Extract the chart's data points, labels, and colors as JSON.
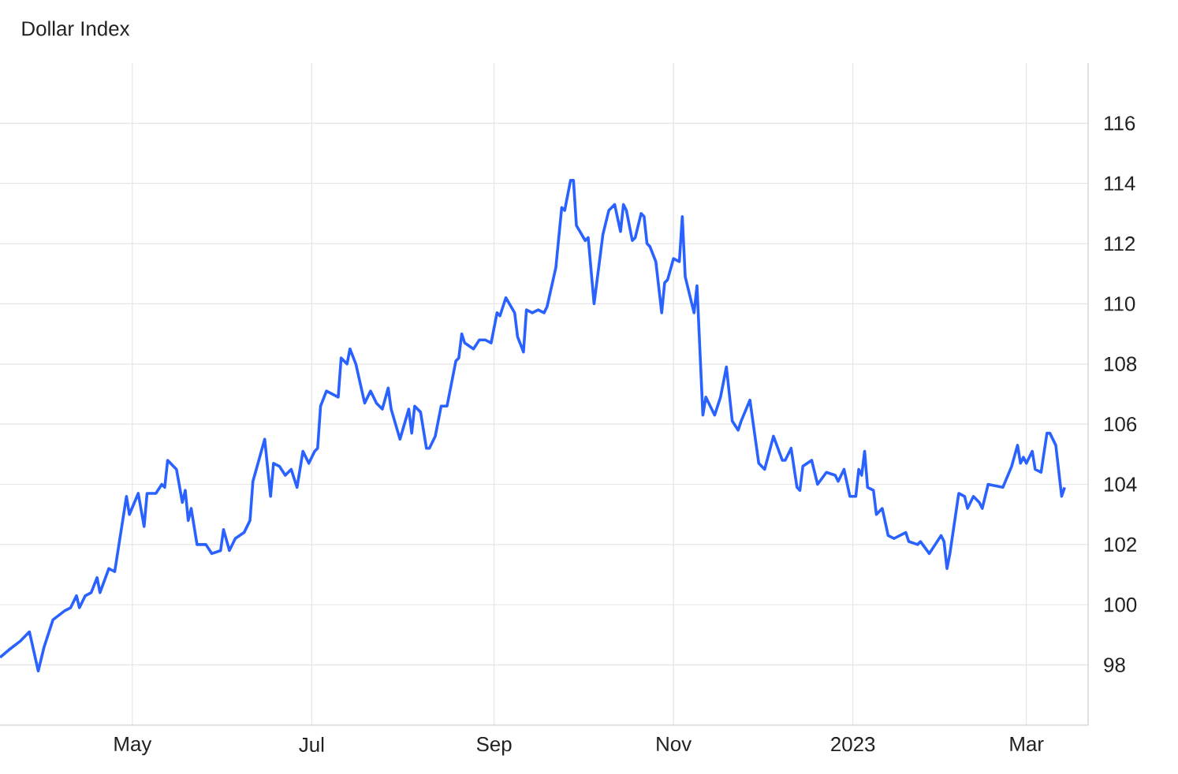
{
  "chart_data": {
    "type": "line",
    "title": "Dollar Index",
    "xlim": [
      "2022-03-17",
      "2023-03-22"
    ],
    "ylim": [
      96,
      118
    ],
    "xticks": [
      {
        "value": "2022-05-01",
        "label": "May"
      },
      {
        "value": "2022-07-01",
        "label": "Jul"
      },
      {
        "value": "2022-09-01",
        "label": "Sep"
      },
      {
        "value": "2022-11-01",
        "label": "Nov"
      },
      {
        "value": "2023-01-01",
        "label": "2023"
      },
      {
        "value": "2023-03-01",
        "label": "Mar"
      }
    ],
    "yticks": [
      98,
      100,
      102,
      104,
      106,
      108,
      110,
      112,
      114,
      116
    ],
    "grid": true,
    "series": [
      {
        "color": "#2962ff",
        "x": [
          "2022-03-17",
          "2022-03-20",
          "2022-03-24",
          "2022-03-27",
          "2022-03-30",
          "2022-04-01",
          "2022-04-04",
          "2022-04-08",
          "2022-04-10",
          "2022-04-12",
          "2022-04-13",
          "2022-04-15",
          "2022-04-17",
          "2022-04-19",
          "2022-04-20",
          "2022-04-23",
          "2022-04-25",
          "2022-04-29",
          "2022-04-30",
          "2022-05-03",
          "2022-05-05",
          "2022-05-06",
          "2022-05-09",
          "2022-05-11",
          "2022-05-12",
          "2022-05-13",
          "2022-05-16",
          "2022-05-18",
          "2022-05-19",
          "2022-05-20",
          "2022-05-21",
          "2022-05-23",
          "2022-05-26",
          "2022-05-28",
          "2022-05-31",
          "2022-06-01",
          "2022-06-03",
          "2022-06-05",
          "2022-06-08",
          "2022-06-10",
          "2022-06-11",
          "2022-06-15",
          "2022-06-17",
          "2022-06-18",
          "2022-06-20",
          "2022-06-22",
          "2022-06-24",
          "2022-06-26",
          "2022-06-28",
          "2022-06-30",
          "2022-07-02",
          "2022-07-03",
          "2022-07-04",
          "2022-07-06",
          "2022-07-10",
          "2022-07-11",
          "2022-07-13",
          "2022-07-14",
          "2022-07-16",
          "2022-07-19",
          "2022-07-21",
          "2022-07-23",
          "2022-07-25",
          "2022-07-27",
          "2022-07-28",
          "2022-07-31",
          "2022-08-03",
          "2022-08-04",
          "2022-08-05",
          "2022-08-07",
          "2022-08-09",
          "2022-08-10",
          "2022-08-12",
          "2022-08-14",
          "2022-08-16",
          "2022-08-19",
          "2022-08-20",
          "2022-08-21",
          "2022-08-22",
          "2022-08-25",
          "2022-08-27",
          "2022-08-29",
          "2022-08-31",
          "2022-09-02",
          "2022-09-03",
          "2022-09-05",
          "2022-09-08",
          "2022-09-09",
          "2022-09-11",
          "2022-09-12",
          "2022-09-14",
          "2022-09-16",
          "2022-09-18",
          "2022-09-19",
          "2022-09-22",
          "2022-09-24",
          "2022-09-25",
          "2022-09-27",
          "2022-09-28",
          "2022-09-29",
          "2022-10-02",
          "2022-10-03",
          "2022-10-05",
          "2022-10-08",
          "2022-10-10",
          "2022-10-12",
          "2022-10-14",
          "2022-10-15",
          "2022-10-16",
          "2022-10-18",
          "2022-10-19",
          "2022-10-21",
          "2022-10-22",
          "2022-10-23",
          "2022-10-24",
          "2022-10-26",
          "2022-10-28",
          "2022-10-29",
          "2022-10-30",
          "2022-11-01",
          "2022-11-03",
          "2022-11-04",
          "2022-11-05",
          "2022-11-08",
          "2022-11-09",
          "2022-11-11",
          "2022-11-12",
          "2022-11-15",
          "2022-11-17",
          "2022-11-19",
          "2022-11-21",
          "2022-11-23",
          "2022-11-24",
          "2022-11-27",
          "2022-11-30",
          "2022-12-02",
          "2022-12-05",
          "2022-12-08",
          "2022-12-09",
          "2022-12-11",
          "2022-12-13",
          "2022-12-14",
          "2022-12-15",
          "2022-12-18",
          "2022-12-20",
          "2022-12-23",
          "2022-12-26",
          "2022-12-27",
          "2022-12-29",
          "2022-12-31",
          "2023-01-02",
          "2023-01-03",
          "2023-01-04",
          "2023-01-05",
          "2023-01-06",
          "2023-01-08",
          "2023-01-09",
          "2023-01-11",
          "2023-01-13",
          "2023-01-15",
          "2023-01-17",
          "2023-01-19",
          "2023-01-20",
          "2023-01-23",
          "2023-01-24",
          "2023-01-27",
          "2023-01-29",
          "2023-01-31",
          "2023-02-01",
          "2023-02-02",
          "2023-02-03",
          "2023-02-06",
          "2023-02-08",
          "2023-02-09",
          "2023-02-11",
          "2023-02-13",
          "2023-02-14",
          "2023-02-16",
          "2023-02-21",
          "2023-02-24",
          "2023-02-26",
          "2023-02-27",
          "2023-02-28",
          "2023-03-01",
          "2023-03-03",
          "2023-03-04",
          "2023-03-06",
          "2023-03-08",
          "2023-03-09",
          "2023-03-11",
          "2023-03-13",
          "2023-03-14"
        ],
        "values": [
          98.25,
          98.5,
          98.8,
          99.1,
          97.8,
          98.6,
          99.5,
          99.8,
          99.9,
          100.3,
          99.9,
          100.3,
          100.4,
          100.9,
          100.4,
          101.2,
          101.1,
          103.6,
          103.0,
          103.7,
          102.6,
          103.7,
          103.7,
          104.0,
          103.9,
          104.8,
          104.5,
          103.4,
          103.8,
          102.8,
          103.2,
          102.0,
          102.0,
          101.7,
          101.8,
          102.5,
          101.8,
          102.2,
          102.4,
          102.8,
          104.1,
          105.5,
          103.6,
          104.7,
          104.6,
          104.3,
          104.5,
          103.9,
          105.1,
          104.7,
          105.1,
          105.2,
          106.6,
          107.1,
          106.9,
          108.2,
          108.0,
          108.5,
          108.0,
          106.7,
          107.1,
          106.7,
          106.5,
          107.2,
          106.5,
          105.5,
          106.5,
          105.7,
          106.6,
          106.4,
          105.2,
          105.2,
          105.6,
          106.6,
          106.6,
          108.1,
          108.2,
          109.0,
          108.7,
          108.5,
          108.8,
          108.8,
          108.7,
          109.7,
          109.6,
          110.2,
          109.7,
          108.9,
          108.4,
          109.8,
          109.7,
          109.8,
          109.7,
          109.9,
          111.2,
          113.2,
          113.1,
          114.1,
          114.1,
          112.6,
          112.1,
          112.2,
          110.0,
          112.3,
          113.1,
          113.3,
          112.4,
          113.3,
          113.1,
          112.1,
          112.2,
          113.0,
          112.9,
          112.0,
          111.9,
          111.4,
          109.7,
          110.7,
          110.8,
          111.5,
          111.4,
          112.9,
          110.9,
          109.7,
          110.6,
          106.3,
          106.9,
          106.3,
          106.9,
          107.9,
          106.1,
          105.8,
          106.1,
          106.8,
          104.7,
          104.5,
          105.6,
          104.8,
          104.8,
          105.2,
          103.9,
          103.8,
          104.6,
          104.8,
          104.0,
          104.4,
          104.3,
          104.1,
          104.5,
          103.6,
          103.6,
          104.5,
          104.3,
          105.1,
          103.9,
          103.8,
          103.0,
          103.2,
          102.3,
          102.2,
          102.3,
          102.4,
          102.1,
          102.0,
          102.1,
          101.7,
          102.0,
          102.3,
          102.1,
          101.2,
          101.7,
          103.7,
          103.6,
          103.2,
          103.6,
          103.4,
          103.2,
          104.0,
          103.9,
          104.6,
          105.3,
          104.7,
          104.9,
          104.7,
          105.1,
          104.5,
          104.4,
          105.7,
          105.7,
          105.3,
          103.6,
          103.9
        ]
      }
    ]
  }
}
